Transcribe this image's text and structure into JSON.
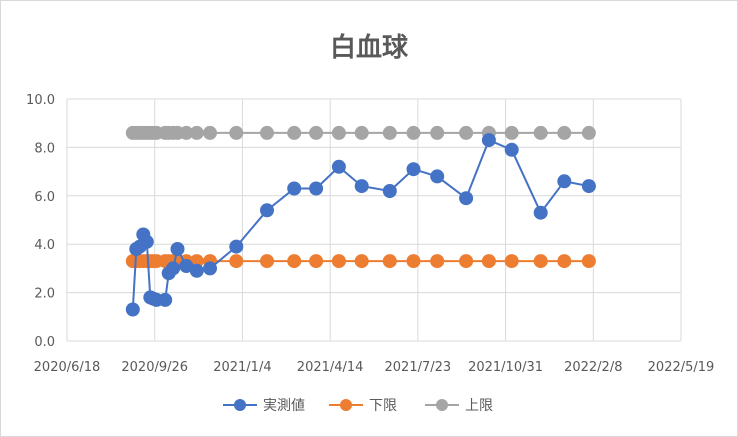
{
  "chart_data": {
    "type": "line",
    "title": "白血球",
    "xlabel": "",
    "ylabel": "",
    "ylim": [
      0,
      10
    ],
    "yticks": [
      "0.0",
      "2.0",
      "4.0",
      "6.0",
      "8.0",
      "10.0"
    ],
    "xlim": [
      "2020-06-18",
      "2022-05-19"
    ],
    "xticks": [
      "2020/6/18",
      "2020/9/26",
      "2021/1/4",
      "2021/4/14",
      "2021/7/23",
      "2021/10/31",
      "2022/2/8",
      "2022/5/19"
    ],
    "grid": true,
    "legend_position": "bottom",
    "series": [
      {
        "name": "実測値",
        "color": "#4472c4",
        "points": [
          [
            "2020-09-01",
            1.3
          ],
          [
            "2020-09-05",
            3.8
          ],
          [
            "2020-09-09",
            3.9
          ],
          [
            "2020-09-13",
            4.4
          ],
          [
            "2020-09-17",
            4.1
          ],
          [
            "2020-09-21",
            1.8
          ],
          [
            "2020-09-24",
            1.75
          ],
          [
            "2020-09-28",
            1.7
          ],
          [
            "2020-10-08",
            1.7
          ],
          [
            "2020-10-12",
            2.8
          ],
          [
            "2020-10-17",
            3.0
          ],
          [
            "2020-10-22",
            3.8
          ],
          [
            "2020-11-01",
            3.1
          ],
          [
            "2020-11-13",
            2.9
          ],
          [
            "2020-11-28",
            3.0
          ],
          [
            "2020-12-28",
            3.9
          ],
          [
            "2021-02-01",
            5.4
          ],
          [
            "2021-03-04",
            6.3
          ],
          [
            "2021-03-29",
            6.3
          ],
          [
            "2021-04-24",
            7.2
          ],
          [
            "2021-05-20",
            6.4
          ],
          [
            "2021-06-21",
            6.2
          ],
          [
            "2021-07-18",
            7.1
          ],
          [
            "2021-08-14",
            6.8
          ],
          [
            "2021-09-16",
            5.9
          ],
          [
            "2021-10-12",
            8.3
          ],
          [
            "2021-11-07",
            7.9
          ],
          [
            "2021-12-10",
            5.3
          ],
          [
            "2022-01-06",
            6.6
          ],
          [
            "2022-02-03",
            6.4
          ]
        ]
      },
      {
        "name": "下限",
        "color": "#ed7d31",
        "points": [
          [
            "2020-09-01",
            3.3
          ],
          [
            "2020-09-05",
            3.3
          ],
          [
            "2020-09-09",
            3.3
          ],
          [
            "2020-09-13",
            3.3
          ],
          [
            "2020-09-17",
            3.3
          ],
          [
            "2020-09-21",
            3.3
          ],
          [
            "2020-09-24",
            3.3
          ],
          [
            "2020-09-28",
            3.3
          ],
          [
            "2020-10-08",
            3.3
          ],
          [
            "2020-10-12",
            3.3
          ],
          [
            "2020-10-17",
            3.3
          ],
          [
            "2020-10-22",
            3.3
          ],
          [
            "2020-11-01",
            3.3
          ],
          [
            "2020-11-13",
            3.3
          ],
          [
            "2020-11-28",
            3.3
          ],
          [
            "2020-12-28",
            3.3
          ],
          [
            "2021-02-01",
            3.3
          ],
          [
            "2021-03-04",
            3.3
          ],
          [
            "2021-03-29",
            3.3
          ],
          [
            "2021-04-24",
            3.3
          ],
          [
            "2021-05-20",
            3.3
          ],
          [
            "2021-06-21",
            3.3
          ],
          [
            "2021-07-18",
            3.3
          ],
          [
            "2021-08-14",
            3.3
          ],
          [
            "2021-09-16",
            3.3
          ],
          [
            "2021-10-12",
            3.3
          ],
          [
            "2021-11-07",
            3.3
          ],
          [
            "2021-12-10",
            3.3
          ],
          [
            "2022-01-06",
            3.3
          ],
          [
            "2022-02-03",
            3.3
          ]
        ]
      },
      {
        "name": "上限",
        "color": "#a5a5a5",
        "points": [
          [
            "2020-09-01",
            8.6
          ],
          [
            "2020-09-05",
            8.6
          ],
          [
            "2020-09-09",
            8.6
          ],
          [
            "2020-09-13",
            8.6
          ],
          [
            "2020-09-17",
            8.6
          ],
          [
            "2020-09-21",
            8.6
          ],
          [
            "2020-09-24",
            8.6
          ],
          [
            "2020-09-28",
            8.6
          ],
          [
            "2020-10-08",
            8.6
          ],
          [
            "2020-10-12",
            8.6
          ],
          [
            "2020-10-17",
            8.6
          ],
          [
            "2020-10-22",
            8.6
          ],
          [
            "2020-11-01",
            8.6
          ],
          [
            "2020-11-13",
            8.6
          ],
          [
            "2020-11-28",
            8.6
          ],
          [
            "2020-12-28",
            8.6
          ],
          [
            "2021-02-01",
            8.6
          ],
          [
            "2021-03-04",
            8.6
          ],
          [
            "2021-03-29",
            8.6
          ],
          [
            "2021-04-24",
            8.6
          ],
          [
            "2021-05-20",
            8.6
          ],
          [
            "2021-06-21",
            8.6
          ],
          [
            "2021-07-18",
            8.6
          ],
          [
            "2021-08-14",
            8.6
          ],
          [
            "2021-09-16",
            8.6
          ],
          [
            "2021-10-12",
            8.6
          ],
          [
            "2021-11-07",
            8.6
          ],
          [
            "2021-12-10",
            8.6
          ],
          [
            "2022-01-06",
            8.6
          ],
          [
            "2022-02-03",
            8.6
          ]
        ]
      }
    ]
  }
}
